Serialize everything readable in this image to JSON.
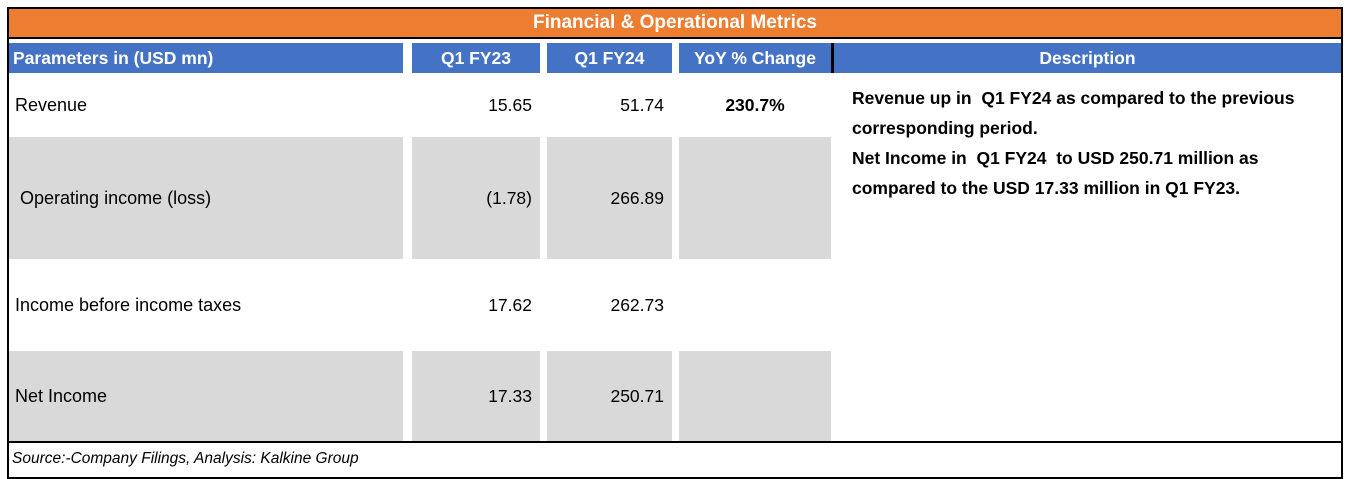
{
  "title": "Financial & Operational Metrics",
  "table": {
    "headers": [
      "Parameters in (USD mn)",
      "Q1 FY23",
      "Q1 FY24",
      "YoY % Change",
      "Description"
    ],
    "rows": [
      {
        "param": "Revenue",
        "q1fy23": "15.65",
        "q1fy24": "51.74",
        "yoy": "230.7%",
        "shaded": false
      },
      {
        "param": " Operating income (loss)",
        "q1fy23": "(1.78)",
        "q1fy24": "266.89",
        "yoy": "",
        "shaded": true
      },
      {
        "param": "Income before income taxes",
        "q1fy23": "17.62",
        "q1fy24": "262.73",
        "yoy": "",
        "shaded": false
      },
      {
        "param": "Net Income",
        "q1fy23": "17.33",
        "q1fy24": "250.71",
        "yoy": "",
        "shaded": true
      }
    ],
    "description_lines": [
      "Revenue up in  Q1 FY24 as compared to the previous corresponding period.",
      "Net Income in  Q1 FY24  to USD 250.71 million as compared to the USD 17.33 million in Q1 FY23."
    ]
  },
  "footer": "Source:-Company Filings, Analysis: Kalkine Group",
  "colors": {
    "title_bg": "#ED7D31",
    "header_bg": "#4472C4",
    "shaded_bg": "#D9D9D9"
  },
  "chart_data": {
    "type": "table",
    "title": "Financial & Operational Metrics",
    "columns": [
      "Parameters in (USD mn)",
      "Q1 FY23",
      "Q1 FY24",
      "YoY % Change",
      "Description"
    ],
    "rows": [
      [
        "Revenue",
        15.65,
        51.74,
        "230.7%",
        "Revenue up in Q1 FY24 as compared to the previous corresponding period."
      ],
      [
        "Operating income (loss)",
        -1.78,
        266.89,
        "",
        "Net Income in Q1 FY24 to USD 250.71 million as compared to the USD 17.33 million in Q1 FY23."
      ],
      [
        "Income before income taxes",
        17.62,
        262.73,
        "",
        ""
      ],
      [
        "Net Income",
        17.33,
        250.71,
        "",
        ""
      ]
    ],
    "source_note": "Source:-Company Filings, Analysis: Kalkine Group"
  }
}
